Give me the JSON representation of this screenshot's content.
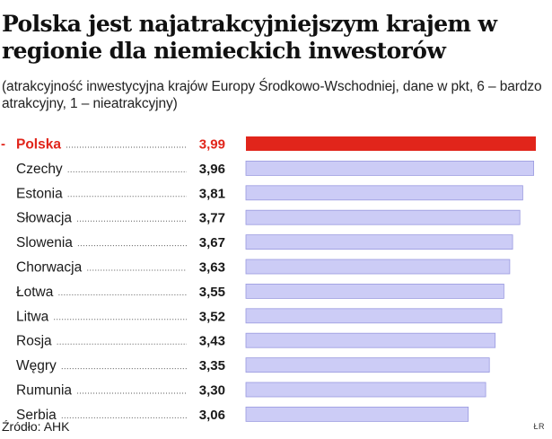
{
  "title": "Polska jest najatrakcyjniejszym krajem w regionie dla niemieckich inwestorów",
  "subtitle": "(atrakcyjność inwestycyjna krajów Europy Środkowo-Wschodniej, dane w pkt, 6 – bardzo atrakcyjny, 1 – nieatrakcyjny)",
  "source": "Źródło: AHK",
  "credit": "ŁR",
  "colors": {
    "highlight": "#e1251b",
    "bar": "#ccccf6",
    "bar_border": "#9a9ae0"
  },
  "chart_data": {
    "type": "bar",
    "orientation": "horizontal",
    "categories": [
      "Polska",
      "Czechy",
      "Estonia",
      "Słowacja",
      "Slowenia",
      "Chorwacja",
      "Łotwa",
      "Litwa",
      "Rosja",
      "Węgry",
      "Rumunia",
      "Serbia"
    ],
    "values": [
      3.99,
      3.96,
      3.81,
      3.77,
      3.67,
      3.63,
      3.55,
      3.52,
      3.43,
      3.35,
      3.3,
      3.06
    ],
    "value_labels": [
      "3,99",
      "3,96",
      "3,81",
      "3,77",
      "3,67",
      "3,63",
      "3,55",
      "3,52",
      "3,43",
      "3,35",
      "3,30",
      "3,06"
    ],
    "highlight": "Polska",
    "highlight_marker": "-",
    "xlim": [
      0,
      3.99
    ]
  }
}
